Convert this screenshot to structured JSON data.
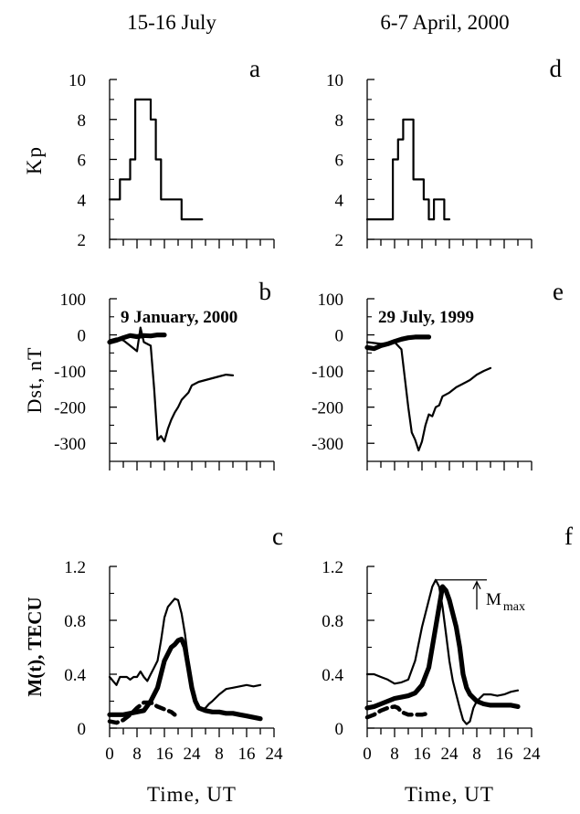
{
  "columns": [
    {
      "title": "15-16 July"
    },
    {
      "title": "6-7 April, 2000"
    }
  ],
  "xaxis": {
    "label": "Time, UT",
    "ticks": [
      "0",
      "8",
      "16",
      "24",
      "8",
      "16",
      "24"
    ]
  },
  "ylabels": {
    "kp": "Kp",
    "dst": "Dst, nT",
    "tec": "M(t), TECU"
  },
  "mmax": {
    "main": "M",
    "sub": "max"
  },
  "chart_data": [
    {
      "type": "line",
      "panel": "a",
      "row": "kp",
      "col": 0,
      "xlim": [
        0,
        48
      ],
      "ylim": [
        2,
        10
      ],
      "yticks": [
        2,
        4,
        6,
        8,
        10
      ],
      "series": [
        {
          "style": "thin",
          "points": [
            [
              0,
              4
            ],
            [
              3,
              4
            ],
            [
              3,
              5
            ],
            [
              6,
              5
            ],
            [
              6,
              6
            ],
            [
              7.5,
              6
            ],
            [
              7.5,
              9
            ],
            [
              12,
              9
            ],
            [
              12,
              8
            ],
            [
              13.5,
              8
            ],
            [
              13.5,
              6
            ],
            [
              15,
              6
            ],
            [
              15,
              4
            ],
            [
              21,
              4
            ],
            [
              21,
              3
            ],
            [
              27,
              3
            ]
          ]
        }
      ]
    },
    {
      "type": "line",
      "panel": "d",
      "row": "kp",
      "col": 1,
      "xlim": [
        0,
        48
      ],
      "ylim": [
        2,
        10
      ],
      "yticks": [
        2,
        4,
        6,
        8,
        10
      ],
      "series": [
        {
          "style": "thin",
          "points": [
            [
              0,
              3
            ],
            [
              7.5,
              3
            ],
            [
              7.5,
              6
            ],
            [
              9,
              6
            ],
            [
              9,
              7
            ],
            [
              10.5,
              7
            ],
            [
              10.5,
              8
            ],
            [
              13.5,
              8
            ],
            [
              13.5,
              5
            ],
            [
              16.5,
              5
            ],
            [
              16.5,
              4
            ],
            [
              18,
              4
            ],
            [
              18,
              3
            ],
            [
              19.5,
              3
            ],
            [
              19.5,
              4
            ],
            [
              22.5,
              4
            ],
            [
              22.5,
              3
            ],
            [
              24,
              3
            ]
          ]
        }
      ]
    },
    {
      "type": "line",
      "panel": "b",
      "row": "dst",
      "col": 0,
      "annotation": "9 January, 2000",
      "xlim": [
        0,
        48
      ],
      "ylim": [
        -350,
        100
      ],
      "yticks": [
        100,
        0,
        -100,
        -200,
        -300
      ],
      "series": [
        {
          "style": "thin",
          "points": [
            [
              0,
              -15
            ],
            [
              2,
              -10
            ],
            [
              4,
              -15
            ],
            [
              6,
              -30
            ],
            [
              8,
              -45
            ],
            [
              9,
              20
            ],
            [
              10,
              -20
            ],
            [
              12,
              -30
            ],
            [
              13,
              -150
            ],
            [
              14,
              -290
            ],
            [
              15,
              -280
            ],
            [
              16,
              -295
            ],
            [
              17,
              -260
            ],
            [
              18,
              -235
            ],
            [
              19,
              -215
            ],
            [
              20,
              -200
            ],
            [
              21,
              -180
            ],
            [
              22,
              -170
            ],
            [
              23,
              -160
            ],
            [
              24,
              -140
            ],
            [
              26,
              -130
            ],
            [
              28,
              -125
            ],
            [
              30,
              -120
            ],
            [
              32,
              -115
            ],
            [
              34,
              -110
            ],
            [
              36,
              -112
            ]
          ]
        },
        {
          "style": "thick",
          "points": [
            [
              0,
              -20
            ],
            [
              2,
              -15
            ],
            [
              4,
              -8
            ],
            [
              6,
              -2
            ],
            [
              8,
              -5
            ],
            [
              10,
              -2
            ],
            [
              12,
              -3
            ],
            [
              14,
              0
            ],
            [
              16,
              0
            ]
          ]
        }
      ]
    },
    {
      "type": "line",
      "panel": "e",
      "row": "dst",
      "col": 1,
      "annotation": "29 July, 1999",
      "xlim": [
        0,
        48
      ],
      "ylim": [
        -350,
        100
      ],
      "yticks": [
        100,
        0,
        -100,
        -200,
        -300
      ],
      "series": [
        {
          "style": "thin",
          "points": [
            [
              0,
              -20
            ],
            [
              4,
              -25
            ],
            [
              8,
              -20
            ],
            [
              10,
              -40
            ],
            [
              12,
              -200
            ],
            [
              13,
              -270
            ],
            [
              14,
              -290
            ],
            [
              15,
              -320
            ],
            [
              16,
              -295
            ],
            [
              17,
              -250
            ],
            [
              18,
              -220
            ],
            [
              19,
              -225
            ],
            [
              20,
              -200
            ],
            [
              21,
              -195
            ],
            [
              22,
              -170
            ],
            [
              24,
              -160
            ],
            [
              26,
              -145
            ],
            [
              28,
              -135
            ],
            [
              30,
              -125
            ],
            [
              32,
              -110
            ],
            [
              34,
              -100
            ],
            [
              36,
              -92
            ]
          ]
        },
        {
          "style": "thick",
          "points": [
            [
              0,
              -35
            ],
            [
              2,
              -38
            ],
            [
              4,
              -30
            ],
            [
              6,
              -25
            ],
            [
              8,
              -18
            ],
            [
              10,
              -12
            ],
            [
              12,
              -8
            ],
            [
              14,
              -6
            ],
            [
              16,
              -6
            ],
            [
              18,
              -6
            ]
          ]
        }
      ]
    },
    {
      "type": "line",
      "panel": "c",
      "row": "tec",
      "col": 0,
      "xlim": [
        0,
        48
      ],
      "ylim": [
        0,
        1.2
      ],
      "yticks": [
        0,
        0.4,
        0.8,
        1.2
      ],
      "series": [
        {
          "style": "thin",
          "points": [
            [
              0,
              0.38
            ],
            [
              2,
              0.32
            ],
            [
              3,
              0.38
            ],
            [
              5,
              0.38
            ],
            [
              6,
              0.36
            ],
            [
              7,
              0.38
            ],
            [
              8,
              0.38
            ],
            [
              9,
              0.42
            ],
            [
              10,
              0.38
            ],
            [
              11,
              0.35
            ],
            [
              12,
              0.4
            ],
            [
              13,
              0.45
            ],
            [
              14,
              0.5
            ],
            [
              15,
              0.65
            ],
            [
              16,
              0.82
            ],
            [
              17,
              0.9
            ],
            [
              18,
              0.93
            ],
            [
              19,
              0.96
            ],
            [
              20,
              0.95
            ],
            [
              21,
              0.85
            ],
            [
              22,
              0.7
            ],
            [
              23,
              0.5
            ],
            [
              24,
              0.3
            ],
            [
              25,
              0.2
            ],
            [
              26,
              0.15
            ],
            [
              27,
              0.14
            ],
            [
              28,
              0.15
            ],
            [
              29,
              0.18
            ],
            [
              30,
              0.2
            ],
            [
              32,
              0.25
            ],
            [
              34,
              0.29
            ],
            [
              36,
              0.3
            ],
            [
              38,
              0.31
            ],
            [
              40,
              0.32
            ],
            [
              42,
              0.31
            ],
            [
              44,
              0.32
            ]
          ]
        },
        {
          "style": "thick",
          "points": [
            [
              0,
              0.1
            ],
            [
              4,
              0.1
            ],
            [
              6,
              0.11
            ],
            [
              8,
              0.12
            ],
            [
              10,
              0.13
            ],
            [
              12,
              0.2
            ],
            [
              14,
              0.3
            ],
            [
              16,
              0.5
            ],
            [
              18,
              0.6
            ],
            [
              19,
              0.62
            ],
            [
              20,
              0.65
            ],
            [
              21,
              0.66
            ],
            [
              22,
              0.6
            ],
            [
              23,
              0.45
            ],
            [
              24,
              0.3
            ],
            [
              25,
              0.2
            ],
            [
              26,
              0.15
            ],
            [
              28,
              0.13
            ],
            [
              30,
              0.12
            ],
            [
              32,
              0.12
            ],
            [
              34,
              0.11
            ],
            [
              36,
              0.11
            ],
            [
              38,
              0.1
            ],
            [
              40,
              0.09
            ],
            [
              42,
              0.08
            ],
            [
              44,
              0.07
            ]
          ]
        },
        {
          "style": "dashed",
          "points": [
            [
              0,
              0.05
            ],
            [
              2,
              0.04
            ],
            [
              4,
              0.06
            ],
            [
              6,
              0.1
            ],
            [
              8,
              0.15
            ],
            [
              10,
              0.19
            ],
            [
              12,
              0.19
            ],
            [
              14,
              0.16
            ],
            [
              16,
              0.14
            ],
            [
              18,
              0.12
            ],
            [
              19,
              0.1
            ]
          ]
        }
      ]
    },
    {
      "type": "line",
      "panel": "f",
      "row": "tec",
      "col": 1,
      "xlim": [
        0,
        48
      ],
      "ylim": [
        0,
        1.2
      ],
      "yticks": [
        0,
        0.4,
        0.8,
        1.2
      ],
      "series": [
        {
          "style": "thin",
          "points": [
            [
              0,
              0.4
            ],
            [
              2,
              0.4
            ],
            [
              4,
              0.38
            ],
            [
              6,
              0.36
            ],
            [
              8,
              0.33
            ],
            [
              10,
              0.34
            ],
            [
              12,
              0.36
            ],
            [
              14,
              0.5
            ],
            [
              16,
              0.75
            ],
            [
              18,
              0.95
            ],
            [
              19,
              1.05
            ],
            [
              20,
              1.1
            ],
            [
              21,
              1.05
            ],
            [
              22,
              0.9
            ],
            [
              23,
              0.7
            ],
            [
              24,
              0.5
            ],
            [
              25,
              0.35
            ],
            [
              26,
              0.25
            ],
            [
              27,
              0.15
            ],
            [
              28,
              0.06
            ],
            [
              29,
              0.03
            ],
            [
              30,
              0.05
            ],
            [
              31,
              0.15
            ],
            [
              32,
              0.2
            ],
            [
              34,
              0.25
            ],
            [
              36,
              0.25
            ],
            [
              38,
              0.24
            ],
            [
              40,
              0.25
            ],
            [
              42,
              0.27
            ],
            [
              44,
              0.28
            ]
          ]
        },
        {
          "style": "thick",
          "points": [
            [
              0,
              0.15
            ],
            [
              2,
              0.16
            ],
            [
              4,
              0.18
            ],
            [
              6,
              0.2
            ],
            [
              8,
              0.22
            ],
            [
              10,
              0.23
            ],
            [
              12,
              0.24
            ],
            [
              14,
              0.26
            ],
            [
              16,
              0.32
            ],
            [
              18,
              0.45
            ],
            [
              20,
              0.75
            ],
            [
              22,
              1.05
            ],
            [
              23,
              1.02
            ],
            [
              24,
              0.95
            ],
            [
              26,
              0.75
            ],
            [
              27,
              0.6
            ],
            [
              28,
              0.4
            ],
            [
              29,
              0.3
            ],
            [
              30,
              0.25
            ],
            [
              32,
              0.2
            ],
            [
              34,
              0.18
            ],
            [
              36,
              0.17
            ],
            [
              38,
              0.17
            ],
            [
              40,
              0.17
            ],
            [
              42,
              0.17
            ],
            [
              44,
              0.16
            ]
          ]
        },
        {
          "style": "dashed",
          "points": [
            [
              0,
              0.08
            ],
            [
              2,
              0.1
            ],
            [
              4,
              0.13
            ],
            [
              6,
              0.15
            ],
            [
              8,
              0.16
            ],
            [
              9,
              0.15
            ],
            [
              10,
              0.12
            ],
            [
              12,
              0.1
            ],
            [
              14,
              0.1
            ],
            [
              16,
              0.1
            ],
            [
              18,
              0.11
            ]
          ]
        }
      ]
    }
  ]
}
